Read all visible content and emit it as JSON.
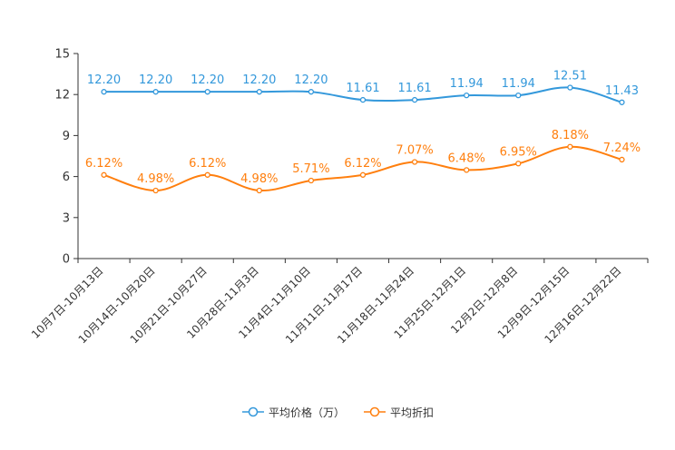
{
  "chart_data": {
    "type": "line",
    "categories": [
      "10月7日-10月13日",
      "10月14日-10月20日",
      "10月21日-10月27日",
      "10月28日-11月3日",
      "11月4日-11月10日",
      "11月11日-11月17日",
      "11月18日-11月24日",
      "11月25日-12月1日",
      "12月2日-12月8日",
      "12月9日-12月15日",
      "12月16日-12月22日"
    ],
    "series": [
      {
        "name": "平均价格（万）",
        "color": "#3398DB",
        "values": [
          12.2,
          12.2,
          12.2,
          12.2,
          12.2,
          11.61,
          11.61,
          11.94,
          11.94,
          12.51,
          11.43
        ],
        "labels": [
          "12.20",
          "12.20",
          "12.20",
          "12.20",
          "12.20",
          "11.61",
          "11.61",
          "11.94",
          "11.94",
          "12.51",
          "11.43"
        ]
      },
      {
        "name": "平均折扣",
        "color": "#FF7F0E",
        "values": [
          6.12,
          4.98,
          6.12,
          4.98,
          5.71,
          6.12,
          7.07,
          6.48,
          6.95,
          8.18,
          7.24
        ],
        "labels": [
          "6.12%",
          "4.98%",
          "6.12%",
          "4.98%",
          "5.71%",
          "6.12%",
          "7.07%",
          "6.48%",
          "6.95%",
          "8.18%",
          "7.24%"
        ]
      }
    ],
    "yticks": [
      "0",
      "3",
      "6",
      "9",
      "12",
      "15"
    ],
    "ylim": [
      0,
      15
    ],
    "title": "",
    "xlabel": "",
    "ylabel": "",
    "grid": false,
    "legend_position": "bottom-center"
  }
}
